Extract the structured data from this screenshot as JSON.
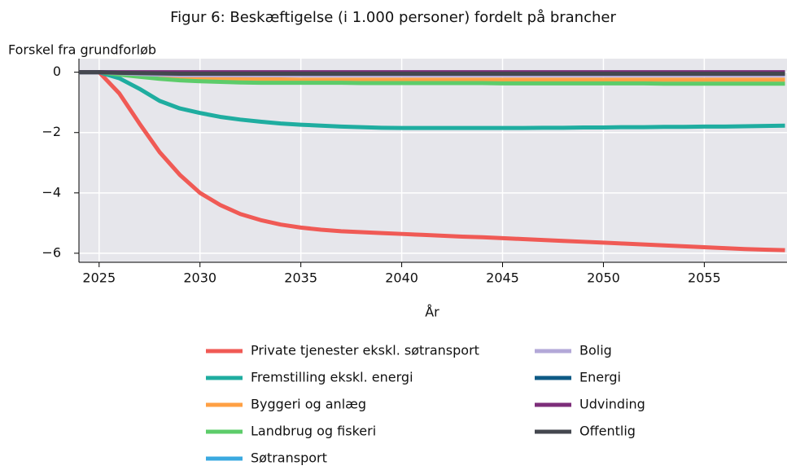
{
  "chart_data": {
    "type": "line",
    "title": "Figur 6: Beskæftigelse (i 1.000 personer) fordelt på brancher",
    "y_label": "Forskel fra grundforløb",
    "x_label": "År",
    "x": [
      2024,
      2025,
      2026,
      2027,
      2028,
      2029,
      2030,
      2031,
      2032,
      2033,
      2034,
      2035,
      2036,
      2037,
      2038,
      2039,
      2040,
      2041,
      2042,
      2043,
      2044,
      2045,
      2046,
      2047,
      2048,
      2049,
      2050,
      2051,
      2052,
      2053,
      2054,
      2055,
      2056,
      2057,
      2058,
      2059
    ],
    "xlim": [
      2024,
      2059.1
    ],
    "xticks": [
      2025,
      2030,
      2035,
      2040,
      2045,
      2050,
      2055
    ],
    "ylim": [
      -6.3,
      0.45
    ],
    "yticks": [
      {
        "value": 0,
        "label": "0"
      },
      {
        "value": -2,
        "label": "−2"
      },
      {
        "value": -4,
        "label": "−4"
      },
      {
        "value": -6,
        "label": "−6"
      }
    ],
    "grid": true,
    "series": [
      {
        "name": "Private tjenester ekskl. søtransport",
        "color": "#f05a55",
        "values": [
          0,
          0,
          -0.7,
          -1.7,
          -2.65,
          -3.4,
          -4.0,
          -4.4,
          -4.7,
          -4.9,
          -5.05,
          -5.15,
          -5.22,
          -5.27,
          -5.3,
          -5.33,
          -5.36,
          -5.39,
          -5.42,
          -5.45,
          -5.47,
          -5.5,
          -5.53,
          -5.56,
          -5.59,
          -5.62,
          -5.65,
          -5.68,
          -5.71,
          -5.74,
          -5.77,
          -5.8,
          -5.83,
          -5.86,
          -5.88,
          -5.9
        ]
      },
      {
        "name": "Fremstilling ekskl. energi",
        "color": "#1fada0",
        "values": [
          0,
          0,
          -0.2,
          -0.55,
          -0.95,
          -1.2,
          -1.35,
          -1.48,
          -1.57,
          -1.64,
          -1.7,
          -1.74,
          -1.77,
          -1.8,
          -1.82,
          -1.84,
          -1.85,
          -1.85,
          -1.85,
          -1.85,
          -1.85,
          -1.85,
          -1.85,
          -1.84,
          -1.84,
          -1.83,
          -1.83,
          -1.82,
          -1.82,
          -1.81,
          -1.81,
          -1.8,
          -1.8,
          -1.79,
          -1.78,
          -1.77
        ]
      },
      {
        "name": "Byggeri og anlæg",
        "color": "#ffa044",
        "values": [
          0,
          0,
          -0.05,
          -0.1,
          -0.15,
          -0.18,
          -0.2,
          -0.22,
          -0.23,
          -0.24,
          -0.24,
          -0.25,
          -0.25,
          -0.25,
          -0.25,
          -0.25,
          -0.25,
          -0.25,
          -0.25,
          -0.25,
          -0.25,
          -0.25,
          -0.25,
          -0.25,
          -0.25,
          -0.25,
          -0.25,
          -0.25,
          -0.25,
          -0.25,
          -0.25,
          -0.25,
          -0.25,
          -0.25,
          -0.25,
          -0.25
        ]
      },
      {
        "name": "Landbrug og fiskeri",
        "color": "#5dcc6a",
        "values": [
          0,
          0,
          -0.08,
          -0.15,
          -0.22,
          -0.27,
          -0.3,
          -0.32,
          -0.34,
          -0.35,
          -0.35,
          -0.35,
          -0.35,
          -0.35,
          -0.36,
          -0.36,
          -0.36,
          -0.36,
          -0.36,
          -0.36,
          -0.36,
          -0.37,
          -0.37,
          -0.37,
          -0.37,
          -0.37,
          -0.37,
          -0.37,
          -0.37,
          -0.38,
          -0.38,
          -0.38,
          -0.38,
          -0.38,
          -0.38,
          -0.38
        ]
      },
      {
        "name": "Søtransport",
        "color": "#3aa9e0",
        "values": [
          0,
          0,
          -0.02,
          -0.04,
          -0.05,
          -0.05,
          -0.05,
          -0.05,
          -0.05,
          -0.05,
          -0.05,
          -0.05,
          -0.05,
          -0.05,
          -0.05,
          -0.05,
          -0.05,
          -0.05,
          -0.05,
          -0.05,
          -0.05,
          -0.05,
          -0.05,
          -0.05,
          -0.05,
          -0.05,
          -0.05,
          -0.05,
          -0.05,
          -0.05,
          -0.05,
          -0.05,
          -0.05,
          -0.05,
          -0.05,
          -0.05
        ]
      },
      {
        "name": "Bolig",
        "color": "#b3a8d8",
        "values": [
          0,
          0,
          -0.03,
          -0.06,
          -0.08,
          -0.1,
          -0.1,
          -0.1,
          -0.1,
          -0.1,
          -0.1,
          -0.1,
          -0.1,
          -0.1,
          -0.1,
          -0.1,
          -0.1,
          -0.1,
          -0.1,
          -0.1,
          -0.1,
          -0.1,
          -0.1,
          -0.1,
          -0.1,
          -0.1,
          -0.1,
          -0.1,
          -0.1,
          -0.1,
          -0.1,
          -0.1,
          -0.1,
          -0.1,
          -0.1,
          -0.1
        ]
      },
      {
        "name": "Energi",
        "color": "#0d5a85",
        "values": [
          0,
          0,
          -0.01,
          -0.02,
          -0.02,
          -0.02,
          -0.02,
          -0.02,
          -0.02,
          -0.02,
          -0.02,
          -0.02,
          -0.02,
          -0.02,
          -0.02,
          -0.02,
          -0.02,
          -0.02,
          -0.02,
          -0.02,
          -0.02,
          -0.02,
          -0.02,
          -0.02,
          -0.02,
          -0.02,
          -0.02,
          -0.02,
          -0.02,
          -0.02,
          -0.02,
          -0.02,
          -0.02,
          -0.02,
          -0.02,
          -0.02
        ]
      },
      {
        "name": "Udvinding",
        "color": "#7d2e7a",
        "values": [
          0,
          0,
          0,
          0,
          0,
          0,
          0,
          0,
          0,
          0,
          0,
          0,
          0,
          0,
          0,
          0,
          0,
          0,
          0,
          0,
          0,
          0,
          0,
          0,
          0,
          0,
          0,
          0,
          0,
          0,
          0,
          0,
          0,
          0,
          0,
          0
        ]
      },
      {
        "name": "Offentlig",
        "color": "#44474f",
        "values": [
          0,
          0,
          -0.02,
          -0.03,
          -0.04,
          -0.05,
          -0.05,
          -0.05,
          -0.05,
          -0.05,
          -0.05,
          -0.05,
          -0.05,
          -0.05,
          -0.05,
          -0.05,
          -0.05,
          -0.05,
          -0.05,
          -0.05,
          -0.05,
          -0.05,
          -0.05,
          -0.05,
          -0.05,
          -0.05,
          -0.05,
          -0.05,
          -0.05,
          -0.05,
          -0.05,
          -0.05,
          -0.05,
          -0.05,
          -0.05,
          -0.05
        ]
      }
    ]
  }
}
